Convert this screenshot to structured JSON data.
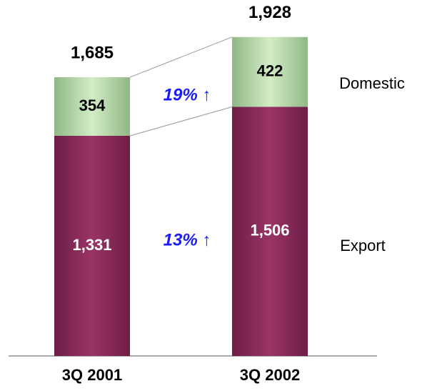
{
  "chart_data": {
    "type": "stacked_bar",
    "categories": [
      "3Q 2001",
      "3Q 2002"
    ],
    "series": [
      {
        "name": "Export",
        "color": "#8e2c5c",
        "values": [
          1331,
          1506
        ],
        "value_labels": [
          "1,331",
          "1,506"
        ]
      },
      {
        "name": "Domestic",
        "color": "#b9d9a9",
        "values": [
          354,
          422
        ]
      }
    ],
    "totals": [
      1685,
      1928
    ],
    "total_labels": [
      "1,685",
      "1,928"
    ],
    "annotations": [
      "19% ↑",
      "13% ↑"
    ],
    "ylim": [
      0,
      2100
    ]
  }
}
